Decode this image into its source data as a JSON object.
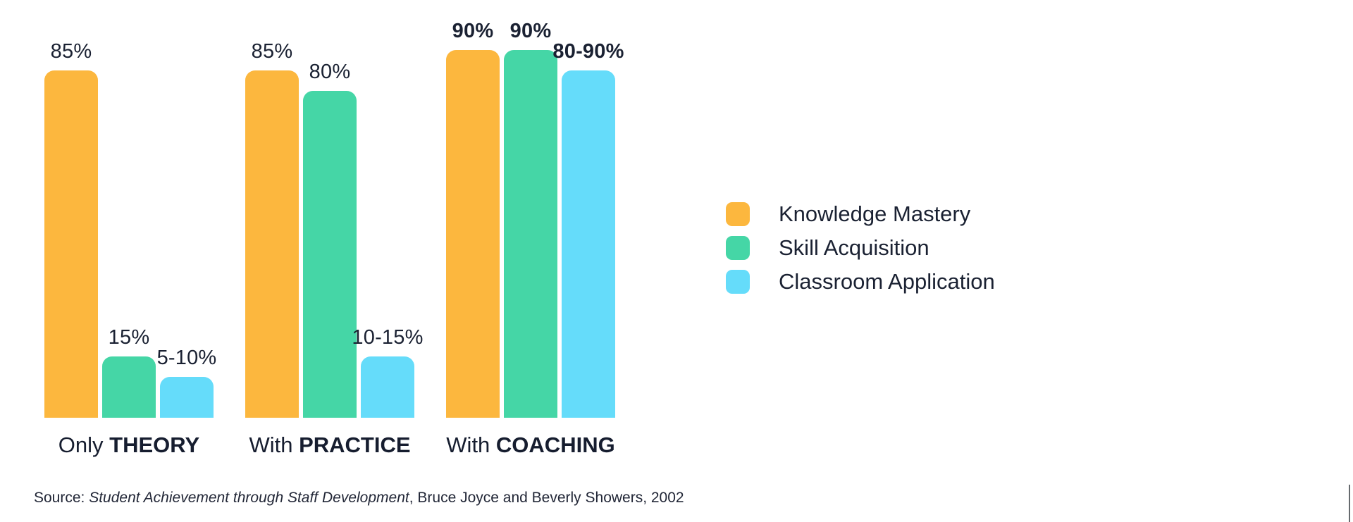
{
  "chart_data": {
    "type": "bar",
    "unit": "%",
    "ylim": [
      0,
      100
    ],
    "grid": false,
    "legend_position": "right",
    "categories": [
      {
        "label_regular": "Only ",
        "label_bold": "THEORY"
      },
      {
        "label_regular": "With ",
        "label_bold": "PRACTICE"
      },
      {
        "label_regular": "With ",
        "label_bold": "COACHING"
      }
    ],
    "series": [
      {
        "name": "Knowledge Mastery",
        "color": "#FCB73E",
        "labels": [
          "85%",
          "85%",
          "90%"
        ],
        "values": [
          85,
          85,
          90
        ]
      },
      {
        "name": "Skill Acquisition",
        "color": "#45D6A6",
        "labels": [
          "15%",
          "80%",
          "90%"
        ],
        "values": [
          15,
          80,
          90
        ]
      },
      {
        "name": "Classroom Application",
        "color": "#65DCFA",
        "labels": [
          "5-10%",
          "10-15%",
          "80-90%"
        ],
        "values": [
          10,
          15,
          85
        ]
      }
    ],
    "bold_value_labels_group_index": 2
  },
  "legend": {
    "items": [
      {
        "label": "Knowledge Mastery",
        "color": "#FCB73E"
      },
      {
        "label": "Skill Acquisition",
        "color": "#45D6A6"
      },
      {
        "label": "Classroom Application",
        "color": "#65DCFA"
      }
    ]
  },
  "source": {
    "prefix": "Source: ",
    "title_italic": "Student Achievement through Staff Development",
    "suffix": ", Bruce Joyce and Beverly Showers, 2002"
  },
  "colors": {
    "text": "#1A2132",
    "background": "#FFFFFF",
    "right_edge_line": "#666A6E"
  }
}
